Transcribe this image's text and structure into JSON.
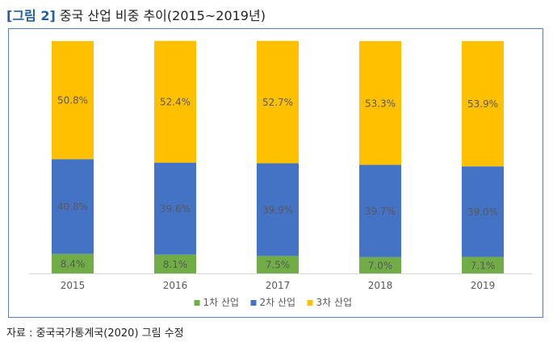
{
  "figure": {
    "label": "[그림 2]",
    "title": "중국 산업 비중 추이(2015~2019년)"
  },
  "source": "자료 : 중국국가통계국(2020) 그림 수정",
  "colors": {
    "primary": "#70ad47",
    "secondary": "#4472c4",
    "tertiary": "#ffc000",
    "axis": "#d9d9d9",
    "text": "#595959"
  },
  "chart_data": {
    "type": "bar",
    "stacked": true,
    "percent": true,
    "categories": [
      "2015",
      "2016",
      "2017",
      "2018",
      "2019"
    ],
    "series": [
      {
        "name": "1차 산업",
        "values": [
          8.4,
          8.1,
          7.5,
          7.0,
          7.1
        ],
        "labels": [
          "8.4%",
          "8.1%",
          "7.5%",
          "7.0%",
          "7.1%"
        ],
        "color": "#70ad47"
      },
      {
        "name": "2차 산업",
        "values": [
          40.8,
          39.6,
          39.9,
          39.7,
          39.0
        ],
        "labels": [
          "40.8%",
          "39.6%",
          "39.9%",
          "39.7%",
          "39.0%"
        ],
        "color": "#4472c4"
      },
      {
        "name": "3차 산업",
        "values": [
          50.8,
          52.4,
          52.7,
          53.3,
          53.9
        ],
        "labels": [
          "50.8%",
          "52.4%",
          "52.7%",
          "53.3%",
          "53.9%"
        ],
        "color": "#ffc000"
      }
    ],
    "ylim": [
      0,
      100
    ],
    "grid": false,
    "legend": "bottom"
  }
}
